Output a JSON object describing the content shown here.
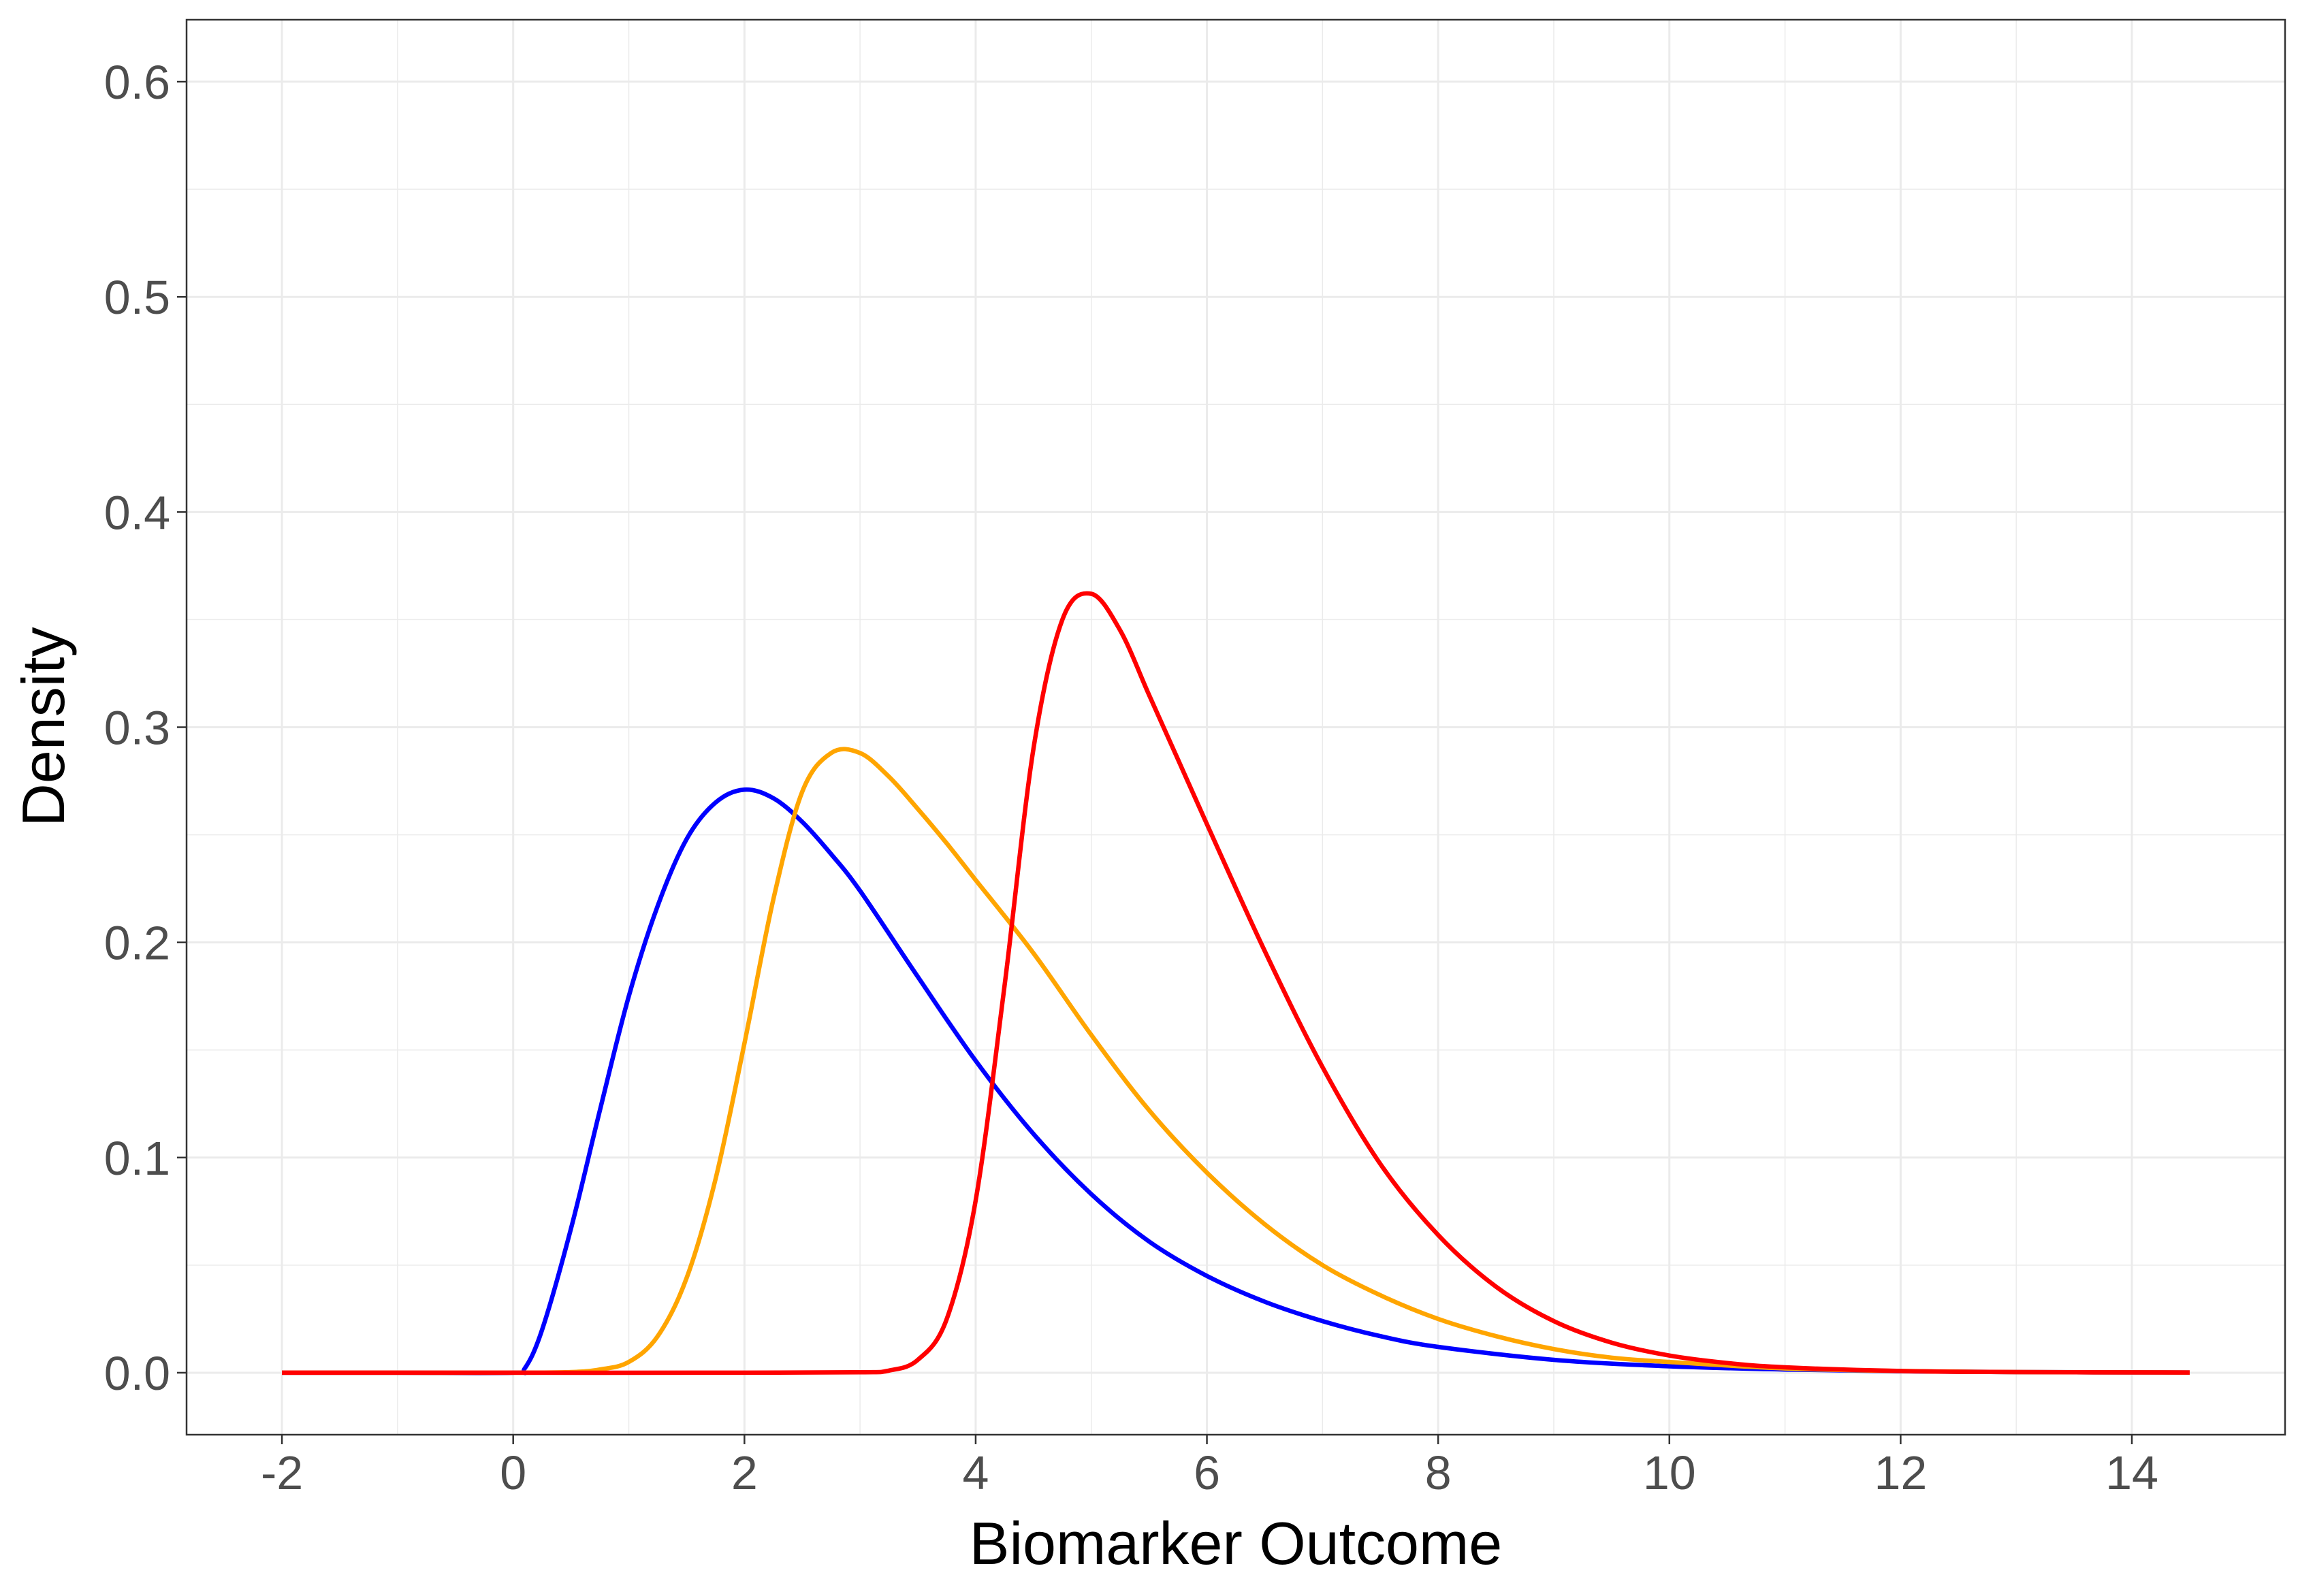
{
  "chart_data": {
    "type": "line",
    "xlabel": "Biomarker Outcome",
    "ylabel": "Density",
    "xlim": [
      -2.825,
      15.325
    ],
    "ylim": [
      -0.0288,
      0.6288
    ],
    "x_ticks": [
      -2,
      0,
      2,
      4,
      6,
      8,
      10,
      12,
      14
    ],
    "x_tick_labels": [
      "-2",
      "0",
      "2",
      "4",
      "6",
      "8",
      "10",
      "12",
      "14"
    ],
    "y_ticks": [
      0.0,
      0.1,
      0.2,
      0.3,
      0.4,
      0.5,
      0.6
    ],
    "y_tick_labels": [
      "0.0",
      "0.1",
      "0.2",
      "0.3",
      "0.4",
      "0.5",
      "0.6"
    ],
    "grid": true,
    "legend": "none",
    "series": [
      {
        "color": "#0000FF",
        "x": [
          -2,
          -1,
          0,
          0.1,
          0.25,
          0.5,
          0.75,
          1.0,
          1.25,
          1.5,
          1.75,
          2.0,
          2.25,
          2.5,
          2.75,
          3.0,
          3.5,
          4.0,
          4.5,
          5.0,
          5.5,
          6.0,
          6.5,
          7.0,
          7.5,
          8.0,
          9.0,
          10.0,
          11.0,
          12.0,
          13.0,
          14.5
        ],
        "y": [
          0,
          0,
          0,
          0.002,
          0.02,
          0.067,
          0.122,
          0.175,
          0.217,
          0.248,
          0.265,
          0.271,
          0.267,
          0.256,
          0.241,
          0.224,
          0.184,
          0.145,
          0.111,
          0.083,
          0.061,
          0.045,
          0.033,
          0.024,
          0.017,
          0.012,
          0.006,
          0.003,
          0.0015,
          0.0007,
          0.0003,
          0.0001
        ]
      },
      {
        "color": "#FFA500",
        "x": [
          -2,
          -1,
          0,
          0.5,
          0.75,
          1.0,
          1.25,
          1.5,
          1.75,
          2.0,
          2.25,
          2.5,
          2.75,
          3.0,
          3.25,
          3.5,
          3.75,
          4.0,
          4.5,
          5.0,
          5.5,
          6.0,
          6.5,
          7.0,
          7.5,
          8.0,
          8.5,
          9.0,
          9.5,
          10.0,
          11.0,
          12.0,
          13.0,
          14.5
        ],
        "y": [
          0,
          0,
          0,
          0.0003,
          0.0015,
          0.005,
          0.017,
          0.044,
          0.09,
          0.153,
          0.22,
          0.27,
          0.288,
          0.288,
          0.277,
          0.262,
          0.246,
          0.229,
          0.195,
          0.157,
          0.122,
          0.093,
          0.069,
          0.05,
          0.036,
          0.025,
          0.017,
          0.011,
          0.007,
          0.005,
          0.002,
          0.0008,
          0.0003,
          0.0001
        ]
      },
      {
        "color": "#FF0000",
        "x": [
          -2,
          0,
          2,
          3.0,
          3.25,
          3.5,
          3.75,
          4.0,
          4.25,
          4.5,
          4.75,
          5.0,
          5.25,
          5.5,
          5.75,
          6.0,
          6.5,
          7.0,
          7.5,
          8.0,
          8.5,
          9.0,
          9.5,
          10.0,
          10.5,
          11.0,
          12.0,
          13.0,
          14.5
        ],
        "y": [
          0,
          0,
          0,
          0.0002,
          0.001,
          0.006,
          0.025,
          0.08,
          0.18,
          0.29,
          0.35,
          0.362,
          0.345,
          0.315,
          0.285,
          0.255,
          0.196,
          0.142,
          0.097,
          0.064,
          0.04,
          0.024,
          0.014,
          0.008,
          0.0045,
          0.0025,
          0.0008,
          0.0003,
          0.0001
        ]
      }
    ]
  }
}
